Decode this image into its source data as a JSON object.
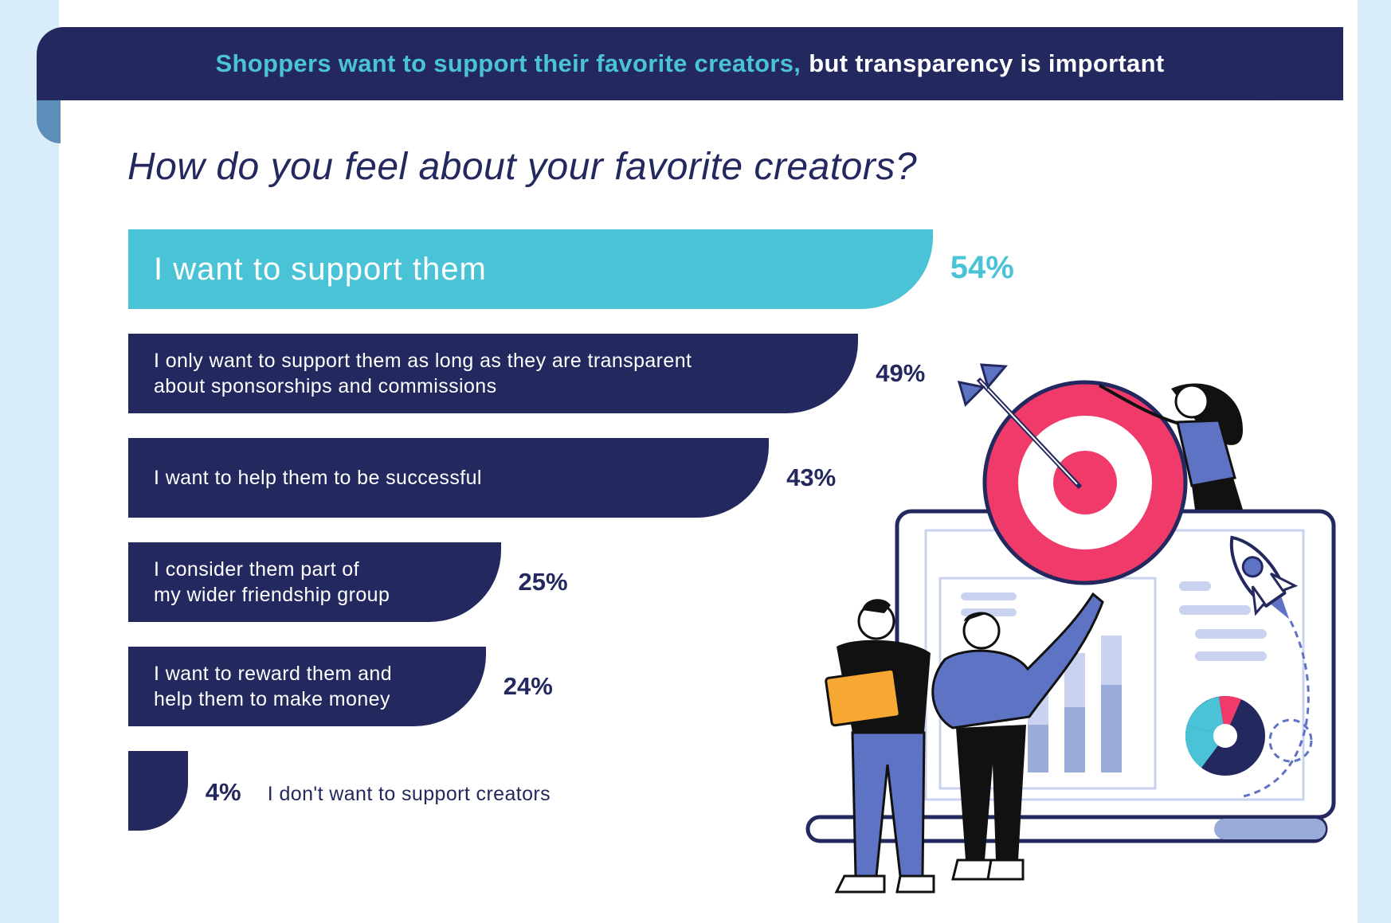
{
  "banner": {
    "highlight": "Shoppers want to support their favorite creators,",
    "rest": "but transparency is important"
  },
  "colors": {
    "navy": "#23285e",
    "teal": "#4bc3d6",
    "pink": "#ef3a6a",
    "blue": "#5f73c4",
    "light": "#d9ecf9",
    "orange": "#f7a833"
  },
  "chart_data": {
    "type": "bar",
    "orientation": "horizontal",
    "title": "How do you feel about your favorite creators?",
    "unit": "%",
    "categories": [
      "I want to support them",
      "I only want to support them as long as they are transparent\nabout sponsorships and commissions",
      "I want to help them to be successful",
      "I consider them part of\nmy wider friendship group",
      "I want to reward them and\nhelp them to make money",
      "I don't want to support creators"
    ],
    "values": [
      54,
      49,
      43,
      25,
      24,
      4
    ],
    "value_labels": [
      "54%",
      "49%",
      "43%",
      "25%",
      "24%",
      "4%"
    ],
    "highlight_index": 0
  }
}
